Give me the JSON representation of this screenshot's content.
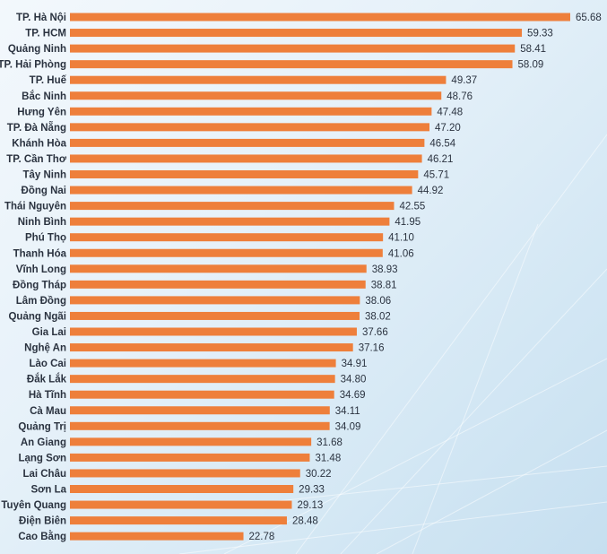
{
  "chart_data": {
    "type": "bar",
    "orientation": "horizontal",
    "categories": [
      "TP. Hà Nội",
      "TP. HCM",
      "Quảng Ninh",
      "TP. Hải Phòng",
      "TP. Huế",
      "Bắc Ninh",
      "Hưng Yên",
      "TP. Đà Nẵng",
      "Khánh Hòa",
      "TP. Cần Thơ",
      "Tây Ninh",
      "Đồng Nai",
      "Thái Nguyên",
      "Ninh Bình",
      "Phú Thọ",
      "Thanh Hóa",
      "Vĩnh Long",
      "Đồng Tháp",
      "Lâm Đồng",
      "Quảng Ngãi",
      "Gia Lai",
      "Nghệ An",
      "Lào Cai",
      "Đắk Lắk",
      "Hà Tĩnh",
      "Cà Mau",
      "Quảng Trị",
      "An Giang",
      "Lạng Sơn",
      "Lai Châu",
      "Sơn La",
      "Tuyên Quang",
      "Điện Biên",
      "Cao Bằng"
    ],
    "values": [
      65.68,
      59.33,
      58.41,
      58.09,
      49.37,
      48.76,
      47.48,
      47.2,
      46.54,
      46.21,
      45.71,
      44.92,
      42.55,
      41.95,
      41.1,
      41.06,
      38.93,
      38.81,
      38.06,
      38.02,
      37.66,
      37.16,
      34.91,
      34.8,
      34.69,
      34.11,
      34.09,
      31.68,
      31.48,
      30.22,
      29.33,
      29.13,
      28.48,
      22.78
    ],
    "value_labels": [
      "65.68",
      "59.33",
      "58.41",
      "58.09",
      "49.37",
      "48.76",
      "47.48",
      "47.20",
      "46.54",
      "46.21",
      "45.71",
      "44.92",
      "42.55",
      "41.95",
      "41.10",
      "41.06",
      "38.93",
      "38.81",
      "38.06",
      "38.02",
      "37.66",
      "37.16",
      "34.91",
      "34.80",
      "34.69",
      "34.11",
      "34.09",
      "31.68",
      "31.48",
      "30.22",
      "29.33",
      "29.13",
      "28.48",
      "22.78"
    ],
    "title": "",
    "xlabel": "",
    "ylabel": "",
    "xlim": [
      0,
      65.68
    ],
    "grid": false,
    "legend": "none",
    "bar_color": "#ee7f3b",
    "text_color": "#2b3340"
  }
}
